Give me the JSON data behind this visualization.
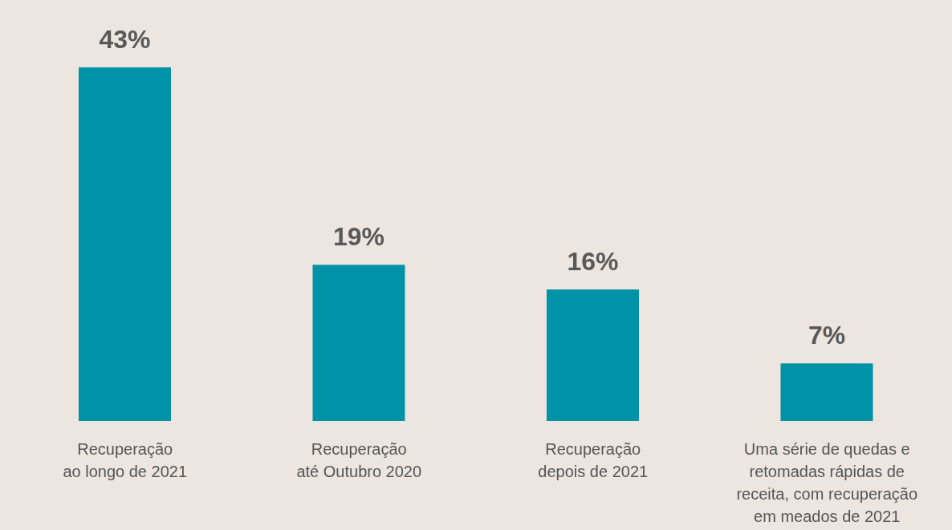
{
  "chart_data": {
    "type": "bar",
    "categories": [
      "Recuperação\nao longo de 2021",
      "Recuperação\naté Outubro 2020",
      "Recuperação\ndepois de 2021",
      "Uma série de quedas e\nretomadas rápidas de\nreceita, com recuperação\nem meados de 2021"
    ],
    "values": [
      43,
      19,
      16,
      7
    ],
    "value_labels": [
      "43%",
      "19%",
      "16%",
      "7%"
    ],
    "color": "#0093a8"
  }
}
